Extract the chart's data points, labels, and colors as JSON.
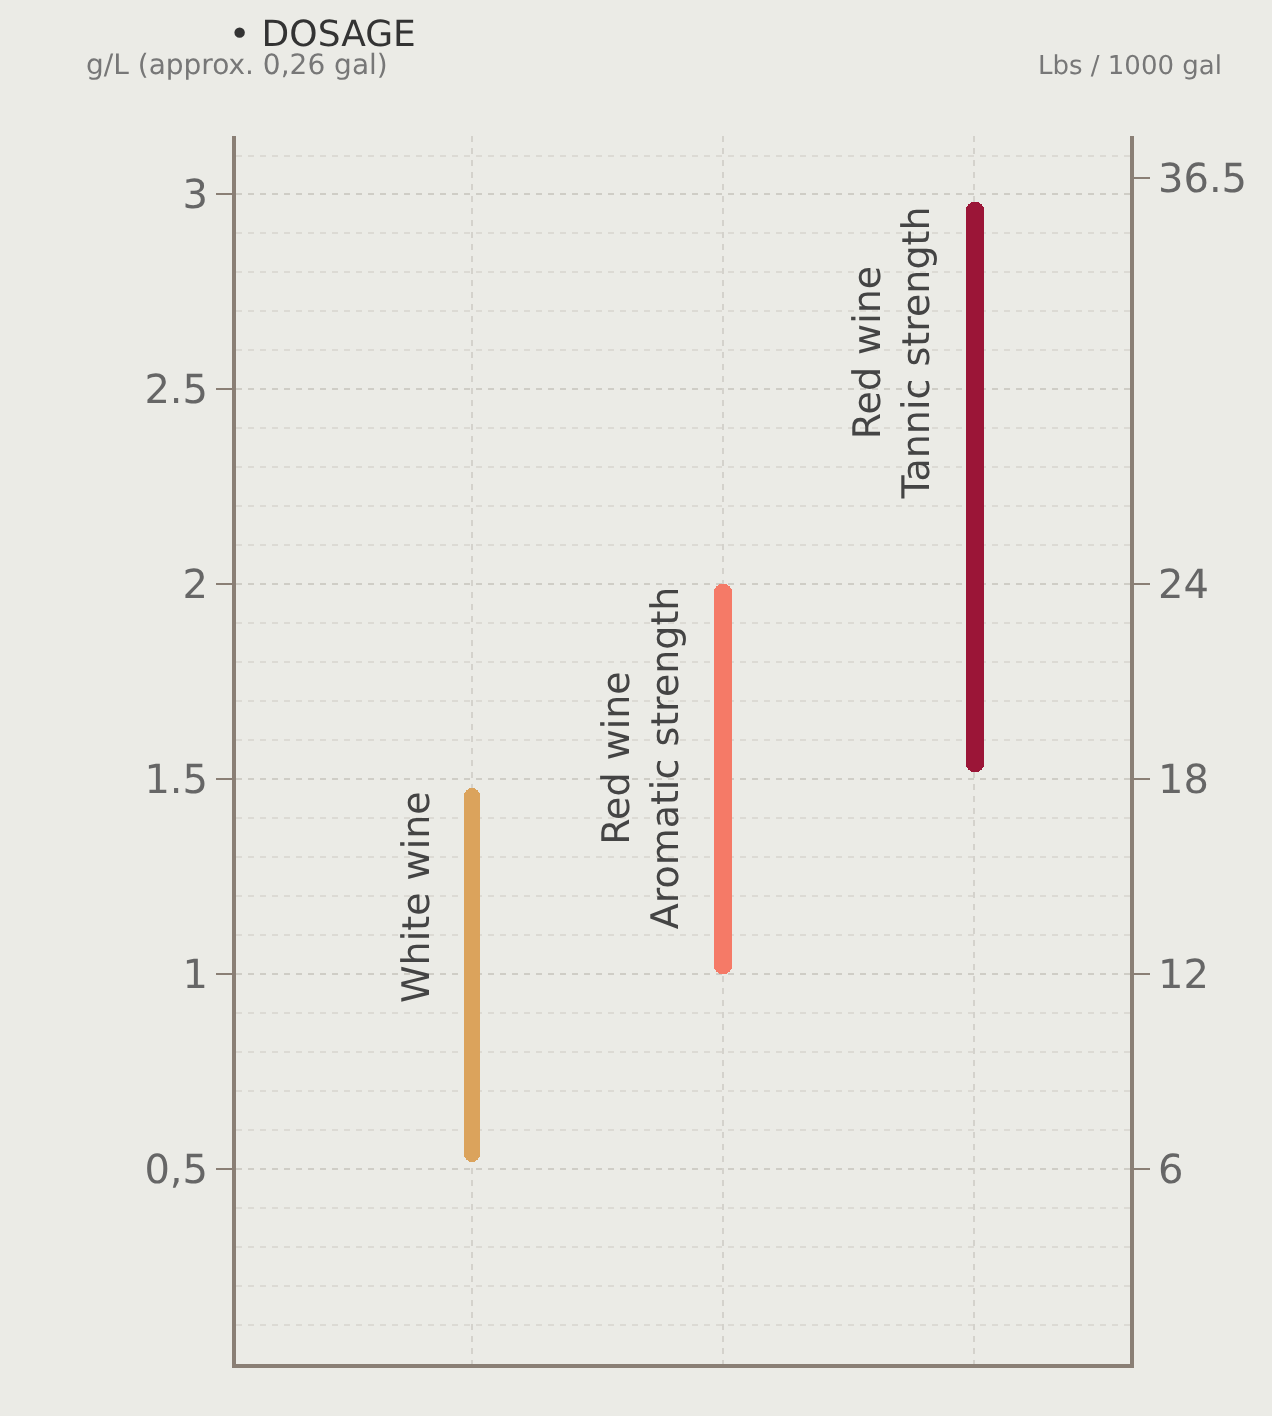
{
  "chart_data": {
    "type": "bar",
    "title": "• DOSAGE",
    "ylabel": "g/L (approx. 0,26 gal)",
    "y2label": "Lbs / 1000 gal",
    "categories": [
      "White wine",
      "Red wine Aromatic strength",
      "Red wine Tannic strength"
    ],
    "base": [
      0.52,
      1.0,
      1.52
    ],
    "values": [
      0.96,
      1.0,
      1.46
    ],
    "colors": [
      "#dba35c",
      "#f57a67",
      "#9b1537"
    ],
    "ylim": [
      0,
      3.15
    ],
    "yticks": [
      {
        "value": 0.5,
        "label": "0,5"
      },
      1,
      1.5,
      2,
      2.5,
      3
    ],
    "y2lim": [
      0,
      37.8
    ],
    "y2ticks": [
      6,
      12,
      18,
      24,
      36.5
    ],
    "grid": true
  }
}
